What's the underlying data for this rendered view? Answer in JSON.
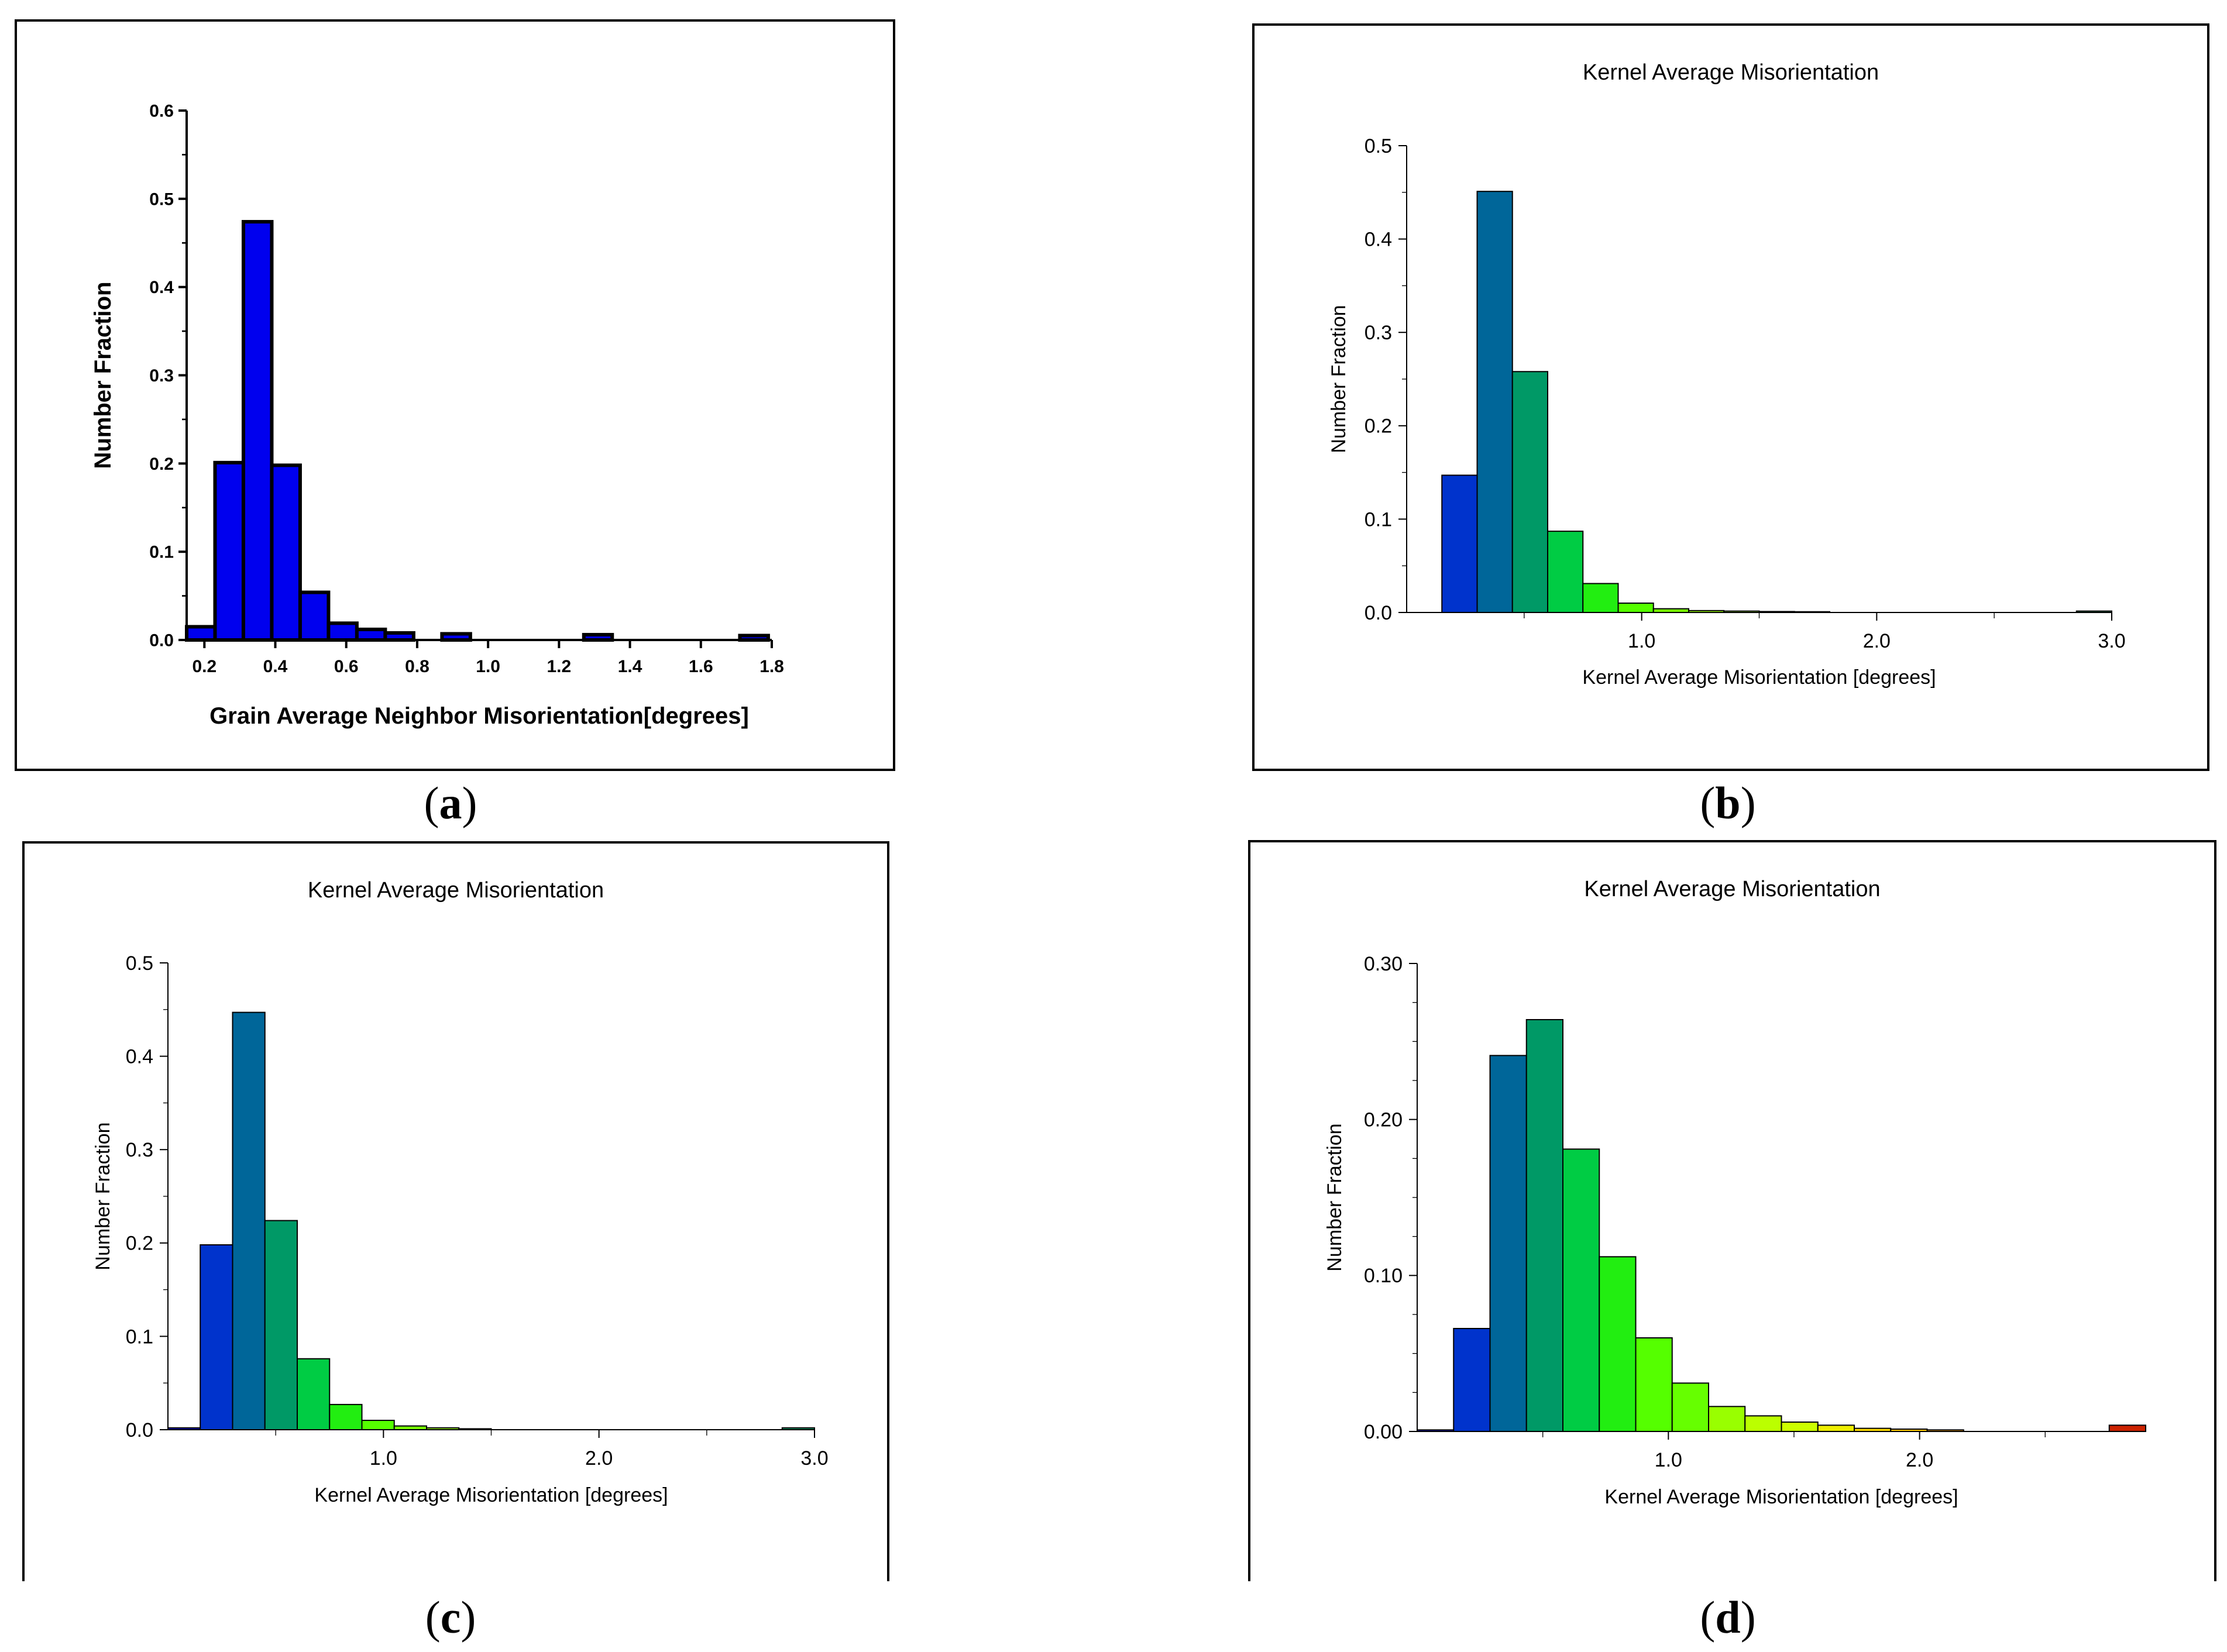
{
  "panels": [
    {
      "id": "a",
      "caption": "a",
      "chart_data": {
        "type": "bar",
        "style": "bold",
        "title": "",
        "xlabel": "Grain Average Neighbor Misorientation[degrees]",
        "ylabel": "Number Fraction",
        "xlim": [
          0.15,
          1.8
        ],
        "ylim": [
          0,
          0.6
        ],
        "xticks": [
          0.2,
          0.4,
          0.6,
          0.8,
          1.0,
          1.2,
          1.4,
          1.6,
          1.8
        ],
        "xtick_labels": [
          "0.2",
          "0.4",
          "0.6",
          "0.8",
          "1.0",
          "1.2",
          "1.4",
          "1.6",
          "1.8"
        ],
        "yticks": [
          0,
          0.1,
          0.2,
          0.3,
          0.4,
          0.5,
          0.6
        ],
        "ytick_labels": [
          "0.0",
          "0.1",
          "0.2",
          "0.3",
          "0.4",
          "0.5",
          "0.6"
        ],
        "yminor": [
          0.05,
          0.15,
          0.25,
          0.35,
          0.45,
          0.55
        ],
        "bin_width": 0.08,
        "bin_starts": [
          0.15,
          0.23,
          0.31,
          0.39,
          0.47,
          0.55,
          0.63,
          0.71,
          0.87,
          1.27,
          1.71
        ],
        "values": [
          0.015,
          0.201,
          0.474,
          0.198,
          0.054,
          0.019,
          0.012,
          0.008,
          0.007,
          0.006,
          0.005
        ],
        "colors": [
          "#0000ee"
        ]
      }
    },
    {
      "id": "b",
      "caption": "b",
      "chart_data": {
        "type": "bar",
        "style": "plain",
        "title": "Kernel Average Misorientation",
        "xlabel": "Kernel Average Misorientation [degrees]",
        "ylabel": "Number Fraction",
        "xlim": [
          0.0,
          3.0
        ],
        "ylim": [
          0,
          0.5
        ],
        "xticks": [
          1.0,
          2.0,
          3.0
        ],
        "xtick_labels": [
          "1.0",
          "2.0",
          "3.0"
        ],
        "xminor": [
          0.5,
          1.5,
          2.5
        ],
        "yticks": [
          0,
          0.1,
          0.2,
          0.3,
          0.4,
          0.5
        ],
        "ytick_labels": [
          "0.0",
          "0.1",
          "0.2",
          "0.3",
          "0.4",
          "0.5"
        ],
        "yminor": [
          0.05,
          0.15,
          0.25,
          0.35,
          0.45
        ],
        "bin_width": 0.15,
        "bin_starts": [
          0.15,
          0.3,
          0.45,
          0.6,
          0.75,
          0.9,
          1.05,
          1.2,
          1.35,
          1.5,
          1.65,
          2.85
        ],
        "values": [
          0.147,
          0.451,
          0.258,
          0.087,
          0.031,
          0.01,
          0.004,
          0.002,
          0.0015,
          0.001,
          0.0008,
          0.0015
        ],
        "colors": [
          "#0033cc",
          "#006699",
          "#009966",
          "#00cc44",
          "#22ee11",
          "#55ff00",
          "#77ff00",
          "#99ff00",
          "#aaff00",
          "#bbff00",
          "#ccff00",
          "#009966"
        ]
      }
    },
    {
      "id": "c",
      "caption": "c",
      "chart_data": {
        "type": "bar",
        "style": "plain",
        "title": "Kernel Average Misorientation",
        "xlabel": "Kernel Average Misorientation [degrees]",
        "ylabel": "Number Fraction",
        "xlim": [
          0.0,
          3.0
        ],
        "ylim": [
          0,
          0.5
        ],
        "xticks": [
          1.0,
          2.0,
          3.0
        ],
        "xtick_labels": [
          "1.0",
          "2.0",
          "3.0"
        ],
        "xminor": [
          0.5,
          1.5,
          2.5
        ],
        "yticks": [
          0,
          0.1,
          0.2,
          0.3,
          0.4,
          0.5
        ],
        "ytick_labels": [
          "0.0",
          "0.1",
          "0.2",
          "0.3",
          "0.4",
          "0.5"
        ],
        "yminor": [
          0.05,
          0.15,
          0.25,
          0.35,
          0.45
        ],
        "bin_width": 0.15,
        "bin_starts": [
          0.0,
          0.15,
          0.3,
          0.45,
          0.6,
          0.75,
          0.9,
          1.05,
          1.2,
          1.35,
          2.85
        ],
        "values": [
          0.002,
          0.198,
          0.447,
          0.224,
          0.076,
          0.027,
          0.01,
          0.004,
          0.002,
          0.001,
          0.002
        ],
        "colors": [
          "#0000cc",
          "#0033cc",
          "#006699",
          "#009966",
          "#00cc44",
          "#22ee11",
          "#55ff00",
          "#77ff00",
          "#99ff00",
          "#aaff00",
          "#009966"
        ]
      }
    },
    {
      "id": "d",
      "caption": "d",
      "chart_data": {
        "type": "bar",
        "style": "plain",
        "title": "Kernel Average Misorientation",
        "xlabel": "Kernel Average Misorientation [degrees]",
        "ylabel": "Number Fraction",
        "xlim": [
          0.0,
          2.9
        ],
        "ylim": [
          0,
          0.3
        ],
        "xticks": [
          1.0,
          2.0
        ],
        "xtick_labels": [
          "1.0",
          "2.0"
        ],
        "xminor": [
          0.5,
          1.5,
          2.5
        ],
        "yticks": [
          0,
          0.1,
          0.2,
          0.3
        ],
        "ytick_labels": [
          "0.00",
          "0.10",
          "0.20",
          "0.30"
        ],
        "yminor": [
          0.025,
          0.05,
          0.075,
          0.125,
          0.15,
          0.175,
          0.225,
          0.25,
          0.275
        ],
        "bin_width": 0.145,
        "bin_starts": [
          0.0,
          0.145,
          0.29,
          0.435,
          0.58,
          0.725,
          0.87,
          1.015,
          1.16,
          1.305,
          1.45,
          1.595,
          1.74,
          1.885,
          2.03,
          2.755
        ],
        "values": [
          0.001,
          0.066,
          0.241,
          0.264,
          0.181,
          0.112,
          0.06,
          0.031,
          0.016,
          0.01,
          0.006,
          0.004,
          0.002,
          0.0015,
          0.001,
          0.004
        ],
        "colors": [
          "#0000cc",
          "#0033cc",
          "#006699",
          "#009966",
          "#00cc44",
          "#22ee11",
          "#55ff00",
          "#66ff00",
          "#99ff00",
          "#bbff00",
          "#ccff00",
          "#eeee00",
          "#ffdd00",
          "#ffcc00",
          "#ffaa00",
          "#cc2200"
        ]
      }
    }
  ]
}
